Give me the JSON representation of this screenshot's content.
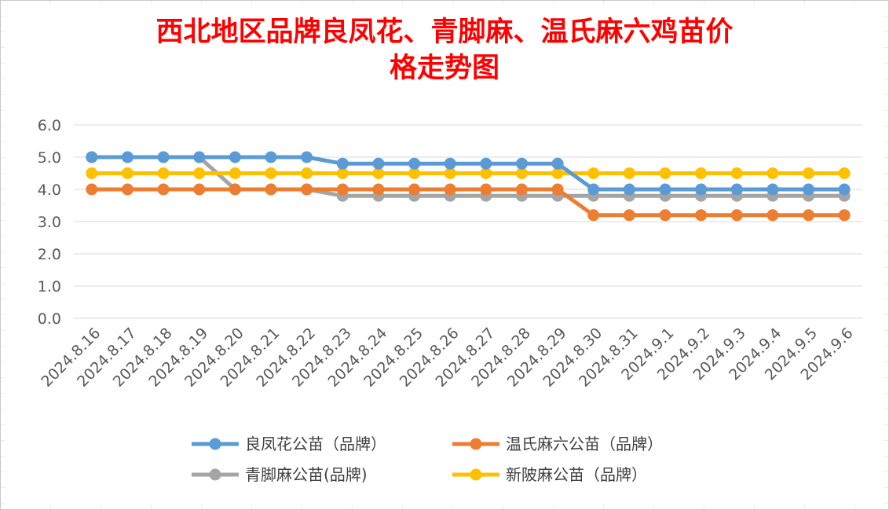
{
  "chart_data": {
    "type": "line",
    "title": "西北地区品牌良凤花、青脚麻、温氏麻六鸡苗价格走势图",
    "title_lines": [
      "西北地区品牌良凤花、青脚麻、温氏麻六鸡苗价",
      "格走势图"
    ],
    "xlabel": "",
    "ylabel": "",
    "ylim": [
      0,
      6
    ],
    "yticks": [
      "0.0",
      "1.0",
      "2.0",
      "3.0",
      "4.0",
      "5.0",
      "6.0"
    ],
    "grid": true,
    "legend_position": "bottom",
    "categories": [
      "2024.8.16",
      "2024.8.17",
      "2024.8.18",
      "2024.8.19",
      "2024.8.20",
      "2024.8.21",
      "2024.8.22",
      "2024.8.23",
      "2024.8.24",
      "2024.8.25",
      "2024.8.26",
      "2024.8.27",
      "2024.8.28",
      "2024.8.29",
      "2024.8.30",
      "2024.8.31",
      "2024.9.1",
      "2024.9.2",
      "2024.9.3",
      "2024.9.4",
      "2024.9.5",
      "2024.9.6"
    ],
    "series": [
      {
        "name": "良凤花公苗（品牌）",
        "color": "#5b9bd5",
        "values": [
          5.0,
          5.0,
          5.0,
          5.0,
          5.0,
          5.0,
          5.0,
          4.8,
          4.8,
          4.8,
          4.8,
          4.8,
          4.8,
          4.8,
          4.0,
          4.0,
          4.0,
          4.0,
          4.0,
          4.0,
          4.0,
          4.0
        ]
      },
      {
        "name": "温氏麻六公苗（品牌）",
        "color": "#ed7d31",
        "values": [
          4.0,
          4.0,
          4.0,
          4.0,
          4.0,
          4.0,
          4.0,
          4.0,
          4.0,
          4.0,
          4.0,
          4.0,
          4.0,
          4.0,
          3.2,
          3.2,
          3.2,
          3.2,
          3.2,
          3.2,
          3.2,
          3.2
        ]
      },
      {
        "name": "青脚麻公苗(品牌)",
        "color": "#a5a5a5",
        "values": [
          5.0,
          5.0,
          5.0,
          5.0,
          4.0,
          4.0,
          4.0,
          3.8,
          3.8,
          3.8,
          3.8,
          3.8,
          3.8,
          3.8,
          3.8,
          3.8,
          3.8,
          3.8,
          3.8,
          3.8,
          3.8,
          3.8
        ]
      },
      {
        "name": "新陂麻公苗（品牌）",
        "color": "#ffc000",
        "values": [
          4.5,
          4.5,
          4.5,
          4.5,
          4.5,
          4.5,
          4.5,
          4.5,
          4.5,
          4.5,
          4.5,
          4.5,
          4.5,
          4.5,
          4.5,
          4.5,
          4.5,
          4.5,
          4.5,
          4.5,
          4.5,
          4.5
        ]
      }
    ]
  }
}
